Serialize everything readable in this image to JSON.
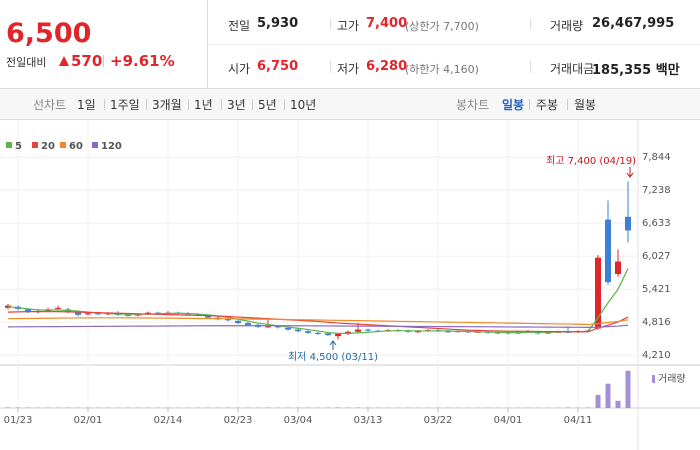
{
  "quote": {
    "price": "6,500",
    "change_label": "전일대비",
    "change": "570",
    "change_rate": "+9.61%"
  },
  "stats": [
    {
      "label": "전일",
      "value": "5,930"
    },
    {
      "label": "고가",
      "value": "7,400",
      "note": "(상한가 7,700)"
    },
    {
      "label": "거래량",
      "value": "26,467,995"
    },
    {
      "label": "시가",
      "value": "6,750"
    },
    {
      "label": "저가",
      "value": "6,280",
      "note": "(하한가 4,160)"
    },
    {
      "label": "거래대금",
      "value": "185,355 백만"
    }
  ],
  "nav": {
    "line_label": "선차트",
    "line_periods": [
      "1일",
      "1주일",
      "3개월",
      "1년",
      "3년",
      "5년",
      "10년"
    ],
    "candle_label": "봉차트",
    "candle_periods": [
      "일봉",
      "주봉",
      "월봉"
    ]
  },
  "chart_data": {
    "type": "candlestick",
    "categories": [
      null,
      "01/23",
      null,
      null,
      null,
      null,
      null,
      null,
      "02/01",
      null,
      null,
      null,
      null,
      null,
      null,
      null,
      "02/14",
      null,
      null,
      null,
      null,
      null,
      null,
      "02/23",
      null,
      null,
      null,
      null,
      null,
      "03/04",
      null,
      null,
      null,
      null,
      null,
      null,
      "03/13",
      null,
      null,
      null,
      null,
      null,
      null,
      "03/22",
      null,
      null,
      null,
      null,
      null,
      null,
      "04/01",
      null,
      null,
      null,
      null,
      null,
      null,
      "04/11",
      null,
      null,
      null,
      null,
      null
    ],
    "open": [
      5080,
      5100,
      5050,
      5000,
      5020,
      5060,
      5050,
      5000,
      4960,
      4980,
      4960,
      4980,
      4950,
      4940,
      4960,
      4990,
      4970,
      4990,
      4980,
      4960,
      4930,
      4900,
      4880,
      4840,
      4800,
      4770,
      4730,
      4740,
      4710,
      4680,
      4650,
      4620,
      4610,
      4560,
      4600,
      4640,
      4680,
      4660,
      4650,
      4670,
      4660,
      4640,
      4650,
      4670,
      4650,
      4640,
      4650,
      4630,
      4640,
      4620,
      4630,
      4610,
      4630,
      4640,
      4610,
      4630,
      4640,
      4630,
      4650,
      4700,
      6700,
      5700,
      6750
    ],
    "high": [
      5150,
      5120,
      5070,
      5060,
      5080,
      5120,
      5080,
      5020,
      5000,
      5010,
      5000,
      5020,
      4970,
      4980,
      5010,
      5010,
      5020,
      5010,
      5000,
      4980,
      4950,
      4920,
      4900,
      4860,
      4820,
      4780,
      4900,
      4760,
      4730,
      4700,
      4670,
      4640,
      4630,
      4620,
      4660,
      4800,
      4700,
      4680,
      4690,
      4690,
      4680,
      4670,
      4690,
      4690,
      4670,
      4670,
      4660,
      4660,
      4650,
      4650,
      4650,
      4650,
      4670,
      4660,
      4650,
      4660,
      4740,
      4670,
      4680,
      6050,
      7050,
      6150,
      7400
    ],
    "low": [
      5050,
      5030,
      4980,
      4980,
      5000,
      5040,
      4980,
      4920,
      4940,
      4950,
      4940,
      4930,
      4920,
      4920,
      4950,
      4950,
      4960,
      4960,
      4950,
      4920,
      4880,
      4850,
      4830,
      4780,
      4740,
      4710,
      4710,
      4700,
      4660,
      4630,
      4600,
      4580,
      4560,
      4500,
      4580,
      4620,
      4640,
      4630,
      4640,
      4640,
      4620,
      4620,
      4640,
      4630,
      4620,
      4630,
      4610,
      4620,
      4600,
      4600,
      4590,
      4600,
      4620,
      4590,
      4600,
      4620,
      4620,
      4620,
      4630,
      4680,
      5500,
      5650,
      6280
    ],
    "close": [
      5120,
      5060,
      5000,
      5020,
      5050,
      5080,
      5000,
      4950,
      4980,
      4960,
      4990,
      4950,
      4940,
      4960,
      4990,
      4970,
      4990,
      4980,
      4960,
      4940,
      4900,
      4870,
      4850,
      4800,
      4760,
      4730,
      4740,
      4720,
      4680,
      4650,
      4620,
      4600,
      4580,
      4600,
      4640,
      4680,
      4660,
      4650,
      4670,
      4660,
      4640,
      4650,
      4670,
      4650,
      4640,
      4650,
      4630,
      4640,
      4620,
      4630,
      4610,
      4630,
      4650,
      4610,
      4630,
      4640,
      4630,
      4650,
      4660,
      6000,
      5550,
      5930,
      6500
    ],
    "up_color": "#e0262b",
    "down_color": "#3d7fd9",
    "moving_averages": [
      {
        "name": "5",
        "color": "#5cb54a",
        "values": [
          5100,
          5080,
          5060,
          5040,
          5040,
          5040,
          5030,
          5020,
          5000,
          4990,
          4975,
          4965,
          4960,
          4960,
          4965,
          4970,
          4975,
          4980,
          4975,
          4965,
          4950,
          4930,
          4905,
          4870,
          4835,
          4800,
          4775,
          4750,
          4725,
          4705,
          4680,
          4655,
          4625,
          4610,
          4610,
          4620,
          4630,
          4645,
          4655,
          4660,
          4660,
          4655,
          4655,
          4655,
          4655,
          4650,
          4645,
          4640,
          4635,
          4630,
          4625,
          4625,
          4630,
          4630,
          4630,
          4635,
          4640,
          4640,
          4645,
          4900,
          5170,
          5420,
          5800
        ]
      },
      {
        "name": "20",
        "color": "#e2453e",
        "values": [
          5000,
          5005,
          5010,
          5010,
          5010,
          5010,
          5005,
          5000,
          4995,
          4990,
          4985,
          4980,
          4975,
          4970,
          4965,
          4960,
          4955,
          4950,
          4945,
          4940,
          4935,
          4930,
          4920,
          4910,
          4900,
          4890,
          4880,
          4870,
          4860,
          4850,
          4840,
          4830,
          4815,
          4800,
          4790,
          4780,
          4770,
          4760,
          4750,
          4740,
          4730,
          4720,
          4710,
          4700,
          4690,
          4680,
          4670,
          4665,
          4660,
          4655,
          4650,
          4650,
          4648,
          4646,
          4644,
          4642,
          4640,
          4640,
          4640,
          4710,
          4760,
          4820,
          4910
        ]
      },
      {
        "name": "60",
        "color": "#f08a24",
        "values": [
          4880,
          4882,
          4884,
          4886,
          4888,
          4890,
          4892,
          4894,
          4895,
          4896,
          4896,
          4896,
          4895,
          4894,
          4893,
          4892,
          4890,
          4888,
          4886,
          4884,
          4882,
          4880,
          4878,
          4876,
          4874,
          4872,
          4870,
          4868,
          4865,
          4862,
          4859,
          4856,
          4853,
          4850,
          4847,
          4844,
          4841,
          4838,
          4835,
          4832,
          4829,
          4826,
          4823,
          4820,
          4817,
          4814,
          4811,
          4808,
          4805,
          4802,
          4799,
          4796,
          4793,
          4790,
          4787,
          4784,
          4781,
          4778,
          4775,
          4790,
          4810,
          4830,
          4860
        ]
      },
      {
        "name": "120",
        "color": "#8d68c4",
        "values": [
          4730,
          4731,
          4732,
          4733,
          4734,
          4735,
          4736,
          4737,
          4738,
          4739,
          4740,
          4741,
          4742,
          4743,
          4744,
          4745,
          4746,
          4747,
          4748,
          4749,
          4750,
          4750,
          4750,
          4750,
          4750,
          4750,
          4750,
          4750,
          4750,
          4750,
          4749,
          4748,
          4747,
          4746,
          4745,
          4744,
          4743,
          4742,
          4741,
          4740,
          4739,
          4738,
          4737,
          4736,
          4735,
          4734,
          4733,
          4732,
          4731,
          4730,
          4729,
          4728,
          4727,
          4726,
          4725,
          4724,
          4723,
          4722,
          4721,
          4725,
          4735,
          4745,
          4760
        ]
      }
    ],
    "volume": {
      "name": "거래량",
      "color": "#a58fd6",
      "ylim": [
        0,
        27000000
      ],
      "values": [
        420000,
        380000,
        350000,
        300000,
        280000,
        310000,
        330000,
        290000,
        260000,
        240000,
        250000,
        230000,
        220000,
        240000,
        260000,
        250000,
        230000,
        220000,
        210000,
        240000,
        260000,
        280000,
        300000,
        320000,
        290000,
        270000,
        350000,
        260000,
        280000,
        300000,
        320000,
        290000,
        310000,
        400000,
        330000,
        360000,
        280000,
        240000,
        230000,
        220000,
        210000,
        200000,
        220000,
        230000,
        210000,
        200000,
        190000,
        210000,
        200000,
        190000,
        200000,
        210000,
        220000,
        200000,
        190000,
        210000,
        380000,
        250000,
        300000,
        9200000,
        17300000,
        5100000,
        26467995
      ]
    },
    "ylim": [
      4030,
      8160
    ],
    "yticks": [
      {
        "value": 7844,
        "label": "7,844"
      },
      {
        "value": 7238,
        "label": "7,238"
      },
      {
        "value": 6633,
        "label": "6,633"
      },
      {
        "value": 6027,
        "label": "6,027"
      },
      {
        "value": 5421,
        "label": "5,421"
      },
      {
        "value": 4816,
        "label": "4,816"
      },
      {
        "value": 4210,
        "label": "4,210"
      }
    ],
    "grid": true,
    "annotations": [
      {
        "text": "최고 7,400 (04/19)",
        "color": "#c8141b"
      },
      {
        "text": "최저 4,500 (03/11)",
        "color": "#1f6aa5"
      }
    ]
  }
}
